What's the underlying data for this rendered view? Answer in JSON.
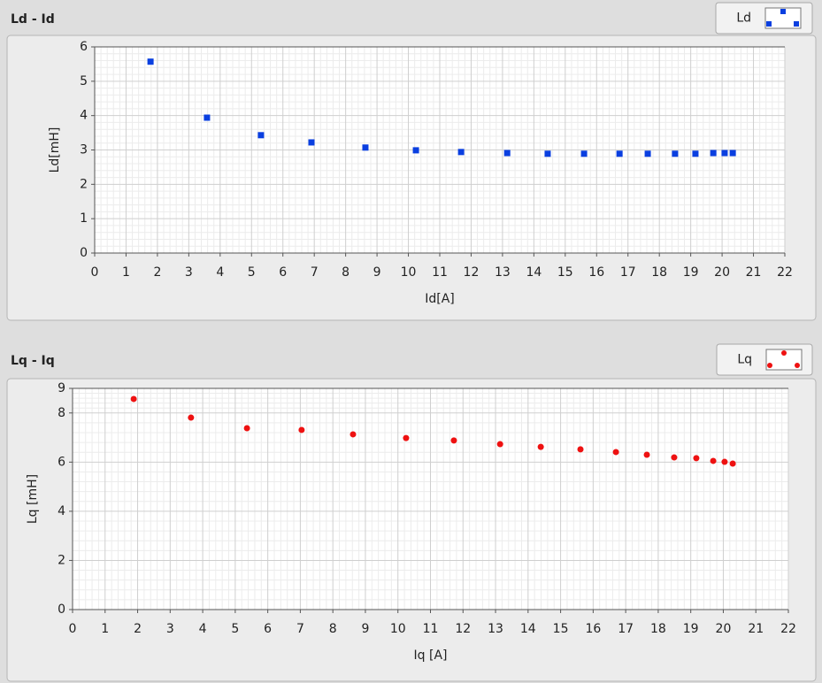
{
  "chart_data": [
    {
      "type": "scatter",
      "title": "Ld - Id",
      "xlabel": "Id[A]",
      "ylabel": "Ld[mH]",
      "xlim": [
        0,
        22
      ],
      "ylim": [
        0,
        6
      ],
      "xticks": [
        0,
        1,
        2,
        3,
        4,
        5,
        6,
        7,
        8,
        9,
        10,
        11,
        12,
        13,
        14,
        15,
        16,
        17,
        18,
        19,
        20,
        21,
        22
      ],
      "yticks": [
        0,
        1,
        2,
        3,
        4,
        5,
        6
      ],
      "grid": true,
      "legend": "top-right",
      "marker": "square",
      "series": [
        {
          "name": "Ld",
          "color": "#0a3fe0",
          "x": [
            1.78,
            3.58,
            5.3,
            6.91,
            8.63,
            10.24,
            11.68,
            13.15,
            14.44,
            15.6,
            16.73,
            17.63,
            18.5,
            19.15,
            19.72,
            20.08,
            20.34
          ],
          "values": [
            5.57,
            3.94,
            3.43,
            3.22,
            3.07,
            2.99,
            2.94,
            2.91,
            2.89,
            2.89,
            2.89,
            2.89,
            2.89,
            2.89,
            2.91,
            2.91,
            2.91
          ]
        }
      ]
    },
    {
      "type": "scatter",
      "title": "Lq - Iq",
      "xlabel": "Iq [A]",
      "ylabel": "Lq [mH]",
      "xlim": [
        0,
        22
      ],
      "ylim": [
        0,
        9
      ],
      "xticks": [
        0,
        1,
        2,
        3,
        4,
        5,
        6,
        7,
        8,
        9,
        10,
        11,
        12,
        13,
        14,
        15,
        16,
        17,
        18,
        19,
        20,
        21,
        22
      ],
      "yticks": [
        0,
        2,
        4,
        6,
        8,
        9
      ],
      "grid": true,
      "legend": "top-right",
      "marker": "circle",
      "series": [
        {
          "name": "Lq",
          "color": "#ee1111",
          "x": [
            1.88,
            3.64,
            5.36,
            7.04,
            8.62,
            10.25,
            11.72,
            13.14,
            14.39,
            15.61,
            16.7,
            17.65,
            18.49,
            19.17,
            19.69,
            20.04,
            20.29
          ],
          "values": [
            8.57,
            7.81,
            7.38,
            7.31,
            7.13,
            6.98,
            6.88,
            6.73,
            6.62,
            6.52,
            6.41,
            6.3,
            6.19,
            6.16,
            6.05,
            6.01,
            5.94
          ]
        }
      ]
    }
  ]
}
